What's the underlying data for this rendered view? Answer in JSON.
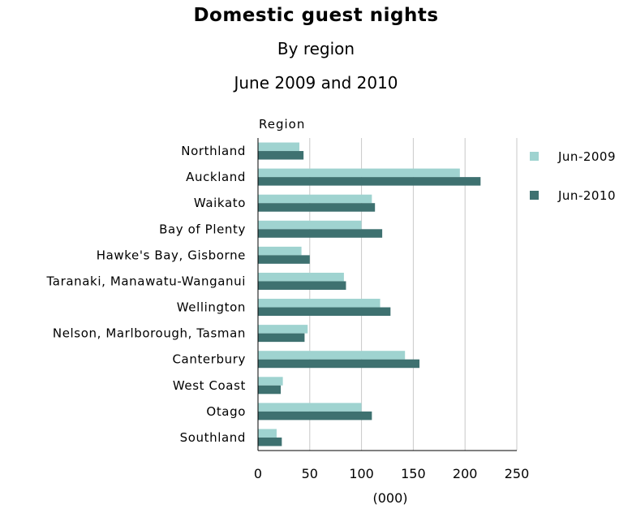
{
  "chart_data": {
    "type": "bar",
    "orientation": "horizontal",
    "title": "Domestic guest nights",
    "subtitle_lines": [
      "By region",
      "June 2009 and 2010"
    ],
    "ylabel": "Region",
    "xlabel": "(000)",
    "xlim": [
      0,
      250
    ],
    "xticks": [
      "0",
      "50",
      "100",
      "150",
      "200",
      "250"
    ],
    "grid": true,
    "legend_position": "right",
    "categories": [
      "Northland",
      "Auckland",
      "Waikato",
      "Bay of Plenty",
      "Hawke's Bay, Gisborne",
      "Taranaki, Manawatu-Wanganui",
      "Wellington",
      "Nelson, Marlborough, Tasman",
      "Canterbury",
      "West Coast",
      "Otago",
      "Southland"
    ],
    "series": [
      {
        "name": "Jun-2009",
        "color": "#9fd3d0",
        "values": [
          40,
          195,
          110,
          100,
          42,
          83,
          118,
          48,
          142,
          24,
          100,
          18
        ]
      },
      {
        "name": "Jun-2010",
        "color": "#3e7170",
        "values": [
          44,
          215,
          113,
          120,
          50,
          85,
          128,
          45,
          156,
          22,
          110,
          23
        ]
      }
    ]
  }
}
